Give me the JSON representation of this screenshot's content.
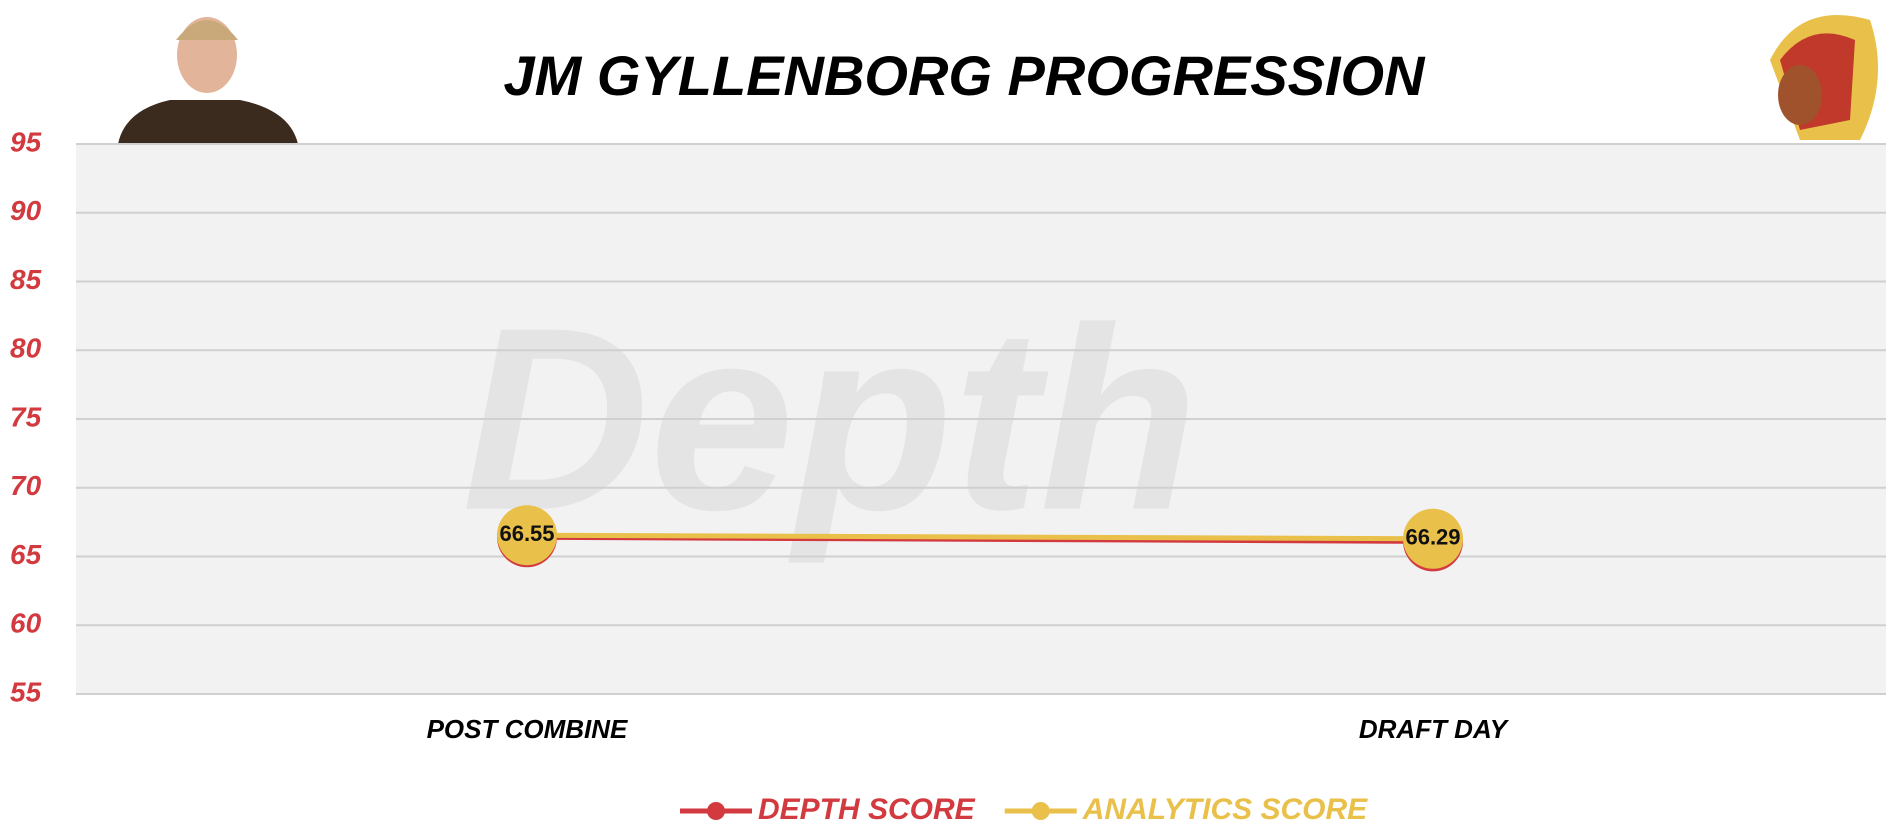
{
  "chart_data": {
    "type": "line",
    "title": "JM GYLLENBORG PROGRESSION",
    "watermark": "Depth",
    "categories": [
      "POST COMBINE",
      "DRAFT DAY"
    ],
    "series": [
      {
        "name": "DEPTH SCORE",
        "color": "#d23a3f",
        "values": [
          66.4,
          66.1
        ]
      },
      {
        "name": "ANALYTICS SCORE",
        "color": "#e9c04a",
        "values": [
          66.55,
          66.29
        ]
      }
    ],
    "ylim": [
      55,
      95
    ],
    "yticks": [
      55,
      60,
      65,
      70,
      75,
      80,
      85,
      90,
      95
    ],
    "grid": true,
    "legend": "bottom",
    "data_labels_series": 1
  }
}
